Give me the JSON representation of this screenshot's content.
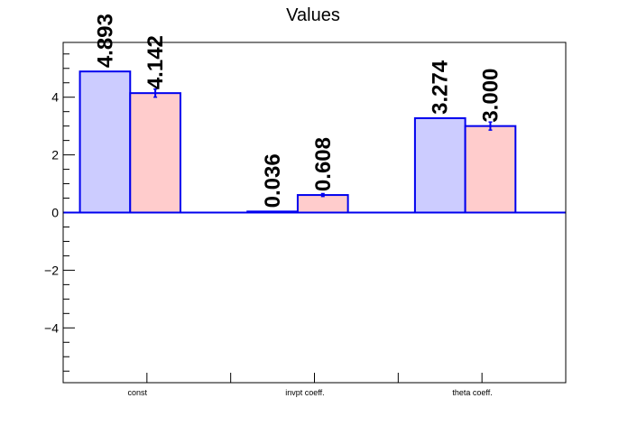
{
  "chart_data": {
    "type": "bar",
    "title": "Values",
    "xlabel": "",
    "ylabel": "",
    "categories": [
      "const",
      "invpt coeff.",
      "theta coeff."
    ],
    "series": [
      {
        "values": [
          4.893,
          0.036,
          3.274
        ],
        "labels": [
          "4.893",
          "0.036",
          "3.274"
        ],
        "fill": "#ccccff",
        "stroke": "#0000ee"
      },
      {
        "values": [
          4.142,
          0.608,
          3.0
        ],
        "labels": [
          "4.142",
          "0.608",
          "3.000"
        ],
        "errors": [
          0.14,
          0.05,
          0.14
        ],
        "fill": "#ffcccc",
        "stroke": "#0000ee"
      }
    ],
    "ylim": [
      -5.9,
      5.9
    ],
    "yticks": [
      -4,
      -2,
      0,
      2,
      4
    ],
    "ytick_labels": [
      "−4",
      "−2",
      "0",
      "2",
      "4"
    ],
    "grid": false,
    "legend": "none"
  }
}
